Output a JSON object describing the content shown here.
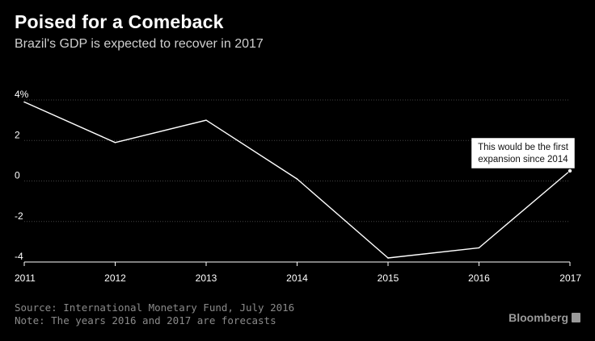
{
  "header": {
    "title": "Poised for a Comeback",
    "subtitle": "Brazil's GDP is expected to recover in 2017"
  },
  "footer": {
    "source": "Source: International Monetary Fund, July 2016",
    "note": "Note: The years 2016 and 2017 are forecasts",
    "brand": "Bloomberg"
  },
  "colors": {
    "background": "#000000",
    "line": "#ffffff",
    "grid": "#444444",
    "axis_text": "#ffffff",
    "muted_text": "#8a8a8a"
  },
  "chart_data": {
    "type": "line",
    "title": "Poised for a Comeback",
    "subtitle": "Brazil's GDP is expected to recover in 2017",
    "xlabel": "",
    "ylabel": "",
    "x": [
      "2011",
      "2012",
      "2013",
      "2014",
      "2015",
      "2016",
      "2017"
    ],
    "series": [
      {
        "values": [
          3.9,
          1.9,
          3.0,
          0.1,
          -3.8,
          -3.3,
          0.5
        ]
      }
    ],
    "ylim": [
      -4,
      4
    ],
    "y_ticks": [
      4,
      2,
      0,
      -2,
      -4
    ],
    "y_tick_labels": [
      "4%",
      "2",
      "0",
      "-2",
      "-4"
    ],
    "grid": true,
    "annotation": {
      "x": "2017",
      "text_line1": "This would be the first",
      "text_line2": "expansion since 2014"
    }
  }
}
